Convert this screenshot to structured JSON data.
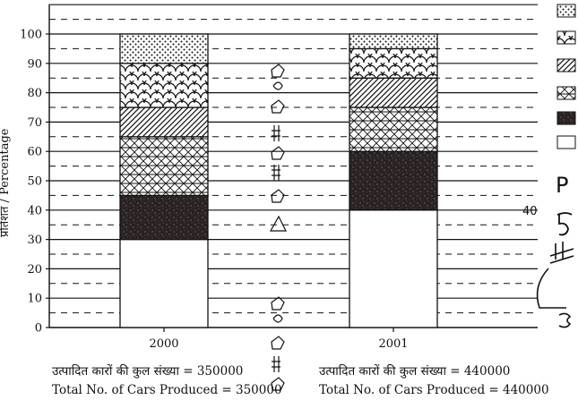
{
  "chart_data": {
    "type": "bar",
    "stacked": true,
    "categories": [
      "2000",
      "2001"
    ],
    "ylabel": "प्रतिशत / Percentage",
    "ylim": [
      0,
      100
    ],
    "yticks": [
      0,
      10,
      20,
      30,
      40,
      50,
      60,
      70,
      80,
      90,
      100
    ],
    "grid": true,
    "series": [
      {
        "pattern": "blank",
        "values": [
          30,
          40
        ]
      },
      {
        "pattern": "dark-speckle",
        "values": [
          15,
          20
        ]
      },
      {
        "pattern": "crosshatch-lattice",
        "values": [
          20,
          15
        ]
      },
      {
        "pattern": "diagonal-lines",
        "values": [
          10,
          10
        ]
      },
      {
        "pattern": "scales",
        "values": [
          15,
          10
        ]
      },
      {
        "pattern": "dots",
        "values": [
          10,
          5
        ]
      }
    ],
    "captions": [
      {
        "hindi": "उत्पादित कारों की कुल संख्या = 350000",
        "english": "Total No. of Cars Produced = 350000"
      },
      {
        "hindi": "उत्पादित कारों की कुल संख्या = 440000",
        "english": "Total No. of Cars Produced = 440000"
      }
    ]
  },
  "handwritten": {
    "letter_p": "P",
    "digits_40": "40"
  },
  "colors": {
    "ink": "#111111",
    "paper": "#ffffff"
  }
}
